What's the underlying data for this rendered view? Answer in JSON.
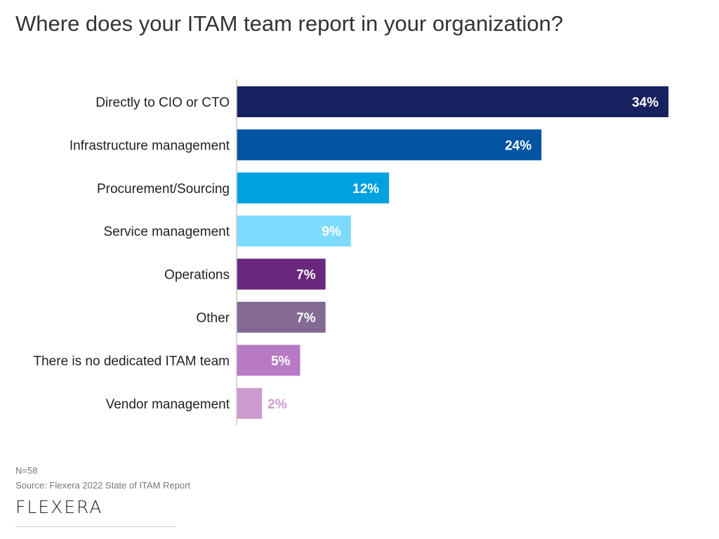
{
  "chart_data": {
    "type": "bar",
    "orientation": "horizontal",
    "title": "Where does your ITAM team report in your organization?",
    "categories": [
      "Directly to CIO or CTO",
      "Infrastructure management",
      "Procurement/Sourcing",
      "Service management",
      "Operations",
      "Other",
      "There is no dedicated ITAM team",
      "Vendor management"
    ],
    "values": [
      34,
      24,
      12,
      9,
      7,
      7,
      5,
      2
    ],
    "value_labels": [
      "34%",
      "24%",
      "12%",
      "9%",
      "7%",
      "7%",
      "5%",
      "2%"
    ],
    "colors": [
      "#17215f",
      "#0054a1",
      "#00a1e0",
      "#7ddcfd",
      "#6a287c",
      "#836994",
      "#b87ac5",
      "#cc9bd0"
    ],
    "label_colors": [
      "#ffffff",
      "#ffffff",
      "#ffffff",
      "#ffffff",
      "#ffffff",
      "#ffffff",
      "#ffffff",
      "#cc9bd0"
    ],
    "xlim": [
      0,
      34
    ],
    "grid": false,
    "legend": "none"
  },
  "footer": {
    "n": "N=58",
    "source": "Source: Flexera 2022 State of ITAM Report",
    "logo": "FLEXERA"
  }
}
